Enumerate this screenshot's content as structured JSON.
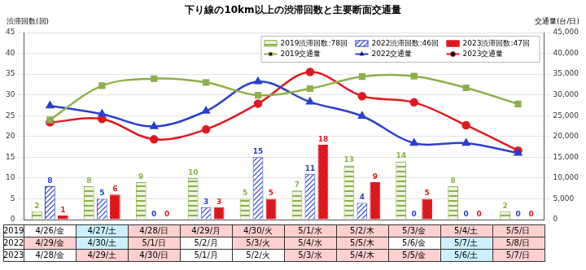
{
  "chart_data": {
    "type": "bar",
    "title": "下り線の10km以上の渋滞回数と主要断面交通量",
    "y_label": "渋滞回数(回)",
    "y2_label": "交通量(台/日)",
    "categories": [
      null,
      null,
      null,
      null,
      null,
      null,
      null,
      null,
      null,
      null
    ],
    "series": [
      {
        "name": "2019渋滞回数:78回",
        "type": "bar",
        "color": "#8db04a",
        "data_labels": true,
        "values": [
          2,
          8,
          9,
          10,
          5,
          7,
          13,
          14,
          8,
          2
        ]
      },
      {
        "name": "2022渋滞回数:46回",
        "type": "bar",
        "color": "#2a3fd0",
        "data_labels": true,
        "values": [
          8,
          5,
          0,
          3,
          15,
          11,
          4,
          0,
          0,
          0
        ]
      },
      {
        "name": "2023渋滞回数:47回",
        "type": "bar",
        "color": "#e0191f",
        "data_labels": true,
        "values": [
          1,
          6,
          0,
          3,
          5,
          18,
          9,
          5,
          0,
          0
        ]
      },
      {
        "name": "2019交通量",
        "type": "line",
        "color": "#8db04a",
        "marker": "square",
        "axis": "y2",
        "values": [
          24000,
          32200,
          33900,
          33000,
          29900,
          31500,
          34400,
          34500,
          31700,
          27800
        ]
      },
      {
        "name": "2022交通量",
        "type": "line",
        "color": "#2a3fd0",
        "marker": "triangle",
        "axis": "y2",
        "values": [
          27400,
          25400,
          22400,
          26100,
          33200,
          28300,
          24900,
          18400,
          18400,
          16000
        ]
      },
      {
        "name": "2023交通量",
        "type": "line",
        "color": "#e0191f",
        "marker": "circle",
        "axis": "y2",
        "values": [
          23400,
          24200,
          19300,
          21700,
          27900,
          35500,
          29700,
          28200,
          22700,
          16600
        ]
      }
    ],
    "ylim": [
      0,
      45
    ],
    "yticks": [
      0,
      5,
      10,
      15,
      20,
      25,
      30,
      35,
      40,
      45
    ],
    "y2lim": [
      0,
      45000
    ],
    "y2ticks": [
      0,
      {
        "value": 5000,
        "label": "5,000"
      },
      {
        "value": 10000,
        "label": "10,000"
      },
      {
        "value": 15000,
        "label": "15,000"
      },
      {
        "value": 20000,
        "label": "20,000"
      },
      {
        "value": 25000,
        "label": "25,000"
      },
      {
        "value": 30000,
        "label": "30,000"
      },
      {
        "value": 35000,
        "label": "35,000"
      },
      {
        "value": 40000,
        "label": "40,000"
      },
      {
        "value": 45000,
        "label": "45,000"
      }
    ],
    "grid": true,
    "legend": "top right"
  },
  "date_table": {
    "rows": [
      {
        "label": "2019",
        "cells": [
          "4/26/金",
          "4/27/土",
          "4/28/日",
          "4/29/月",
          "4/30/火",
          "5/1/水",
          "5/2/木",
          "5/3/金",
          "5/4/土",
          "5/5/日"
        ],
        "colors": [
          "#ffffff",
          "#ccf0ff",
          "#ffd0d0",
          "#ffd0d0",
          "#ffd0d0",
          "#ffd0d0",
          "#ffd0d0",
          "#ffd0d0",
          "#ffd0d0",
          "#ffd0d0"
        ]
      },
      {
        "label": "2022",
        "cells": [
          "4/29/金",
          "4/30/土",
          "5/1/日",
          "5/2/月",
          "5/3/火",
          "5/4/水",
          "5/5/木",
          "5/6/金",
          "5/7/土",
          "5/8/日"
        ],
        "colors": [
          "#ffd0d0",
          "#ccf0ff",
          "#ffd0d0",
          "#ffffff",
          "#ffd0d0",
          "#ffd0d0",
          "#ffd0d0",
          "#ffffff",
          "#ccf0ff",
          "#ffd0d0"
        ]
      },
      {
        "label": "2023",
        "cells": [
          "4/28/金",
          "4/29/土",
          "4/30/日",
          "5/1/月",
          "5/2/火",
          "5/3/水",
          "5/4/木",
          "5/5/金",
          "5/6/土",
          "5/7/日"
        ],
        "colors": [
          "#ffffff",
          "#ffd0d0",
          "#ffd0d0",
          "#ffffff",
          "#ffffff",
          "#ffd0d0",
          "#ffd0d0",
          "#ffd0d0",
          "#ccf0ff",
          "#ffd0d0"
        ]
      }
    ]
  }
}
